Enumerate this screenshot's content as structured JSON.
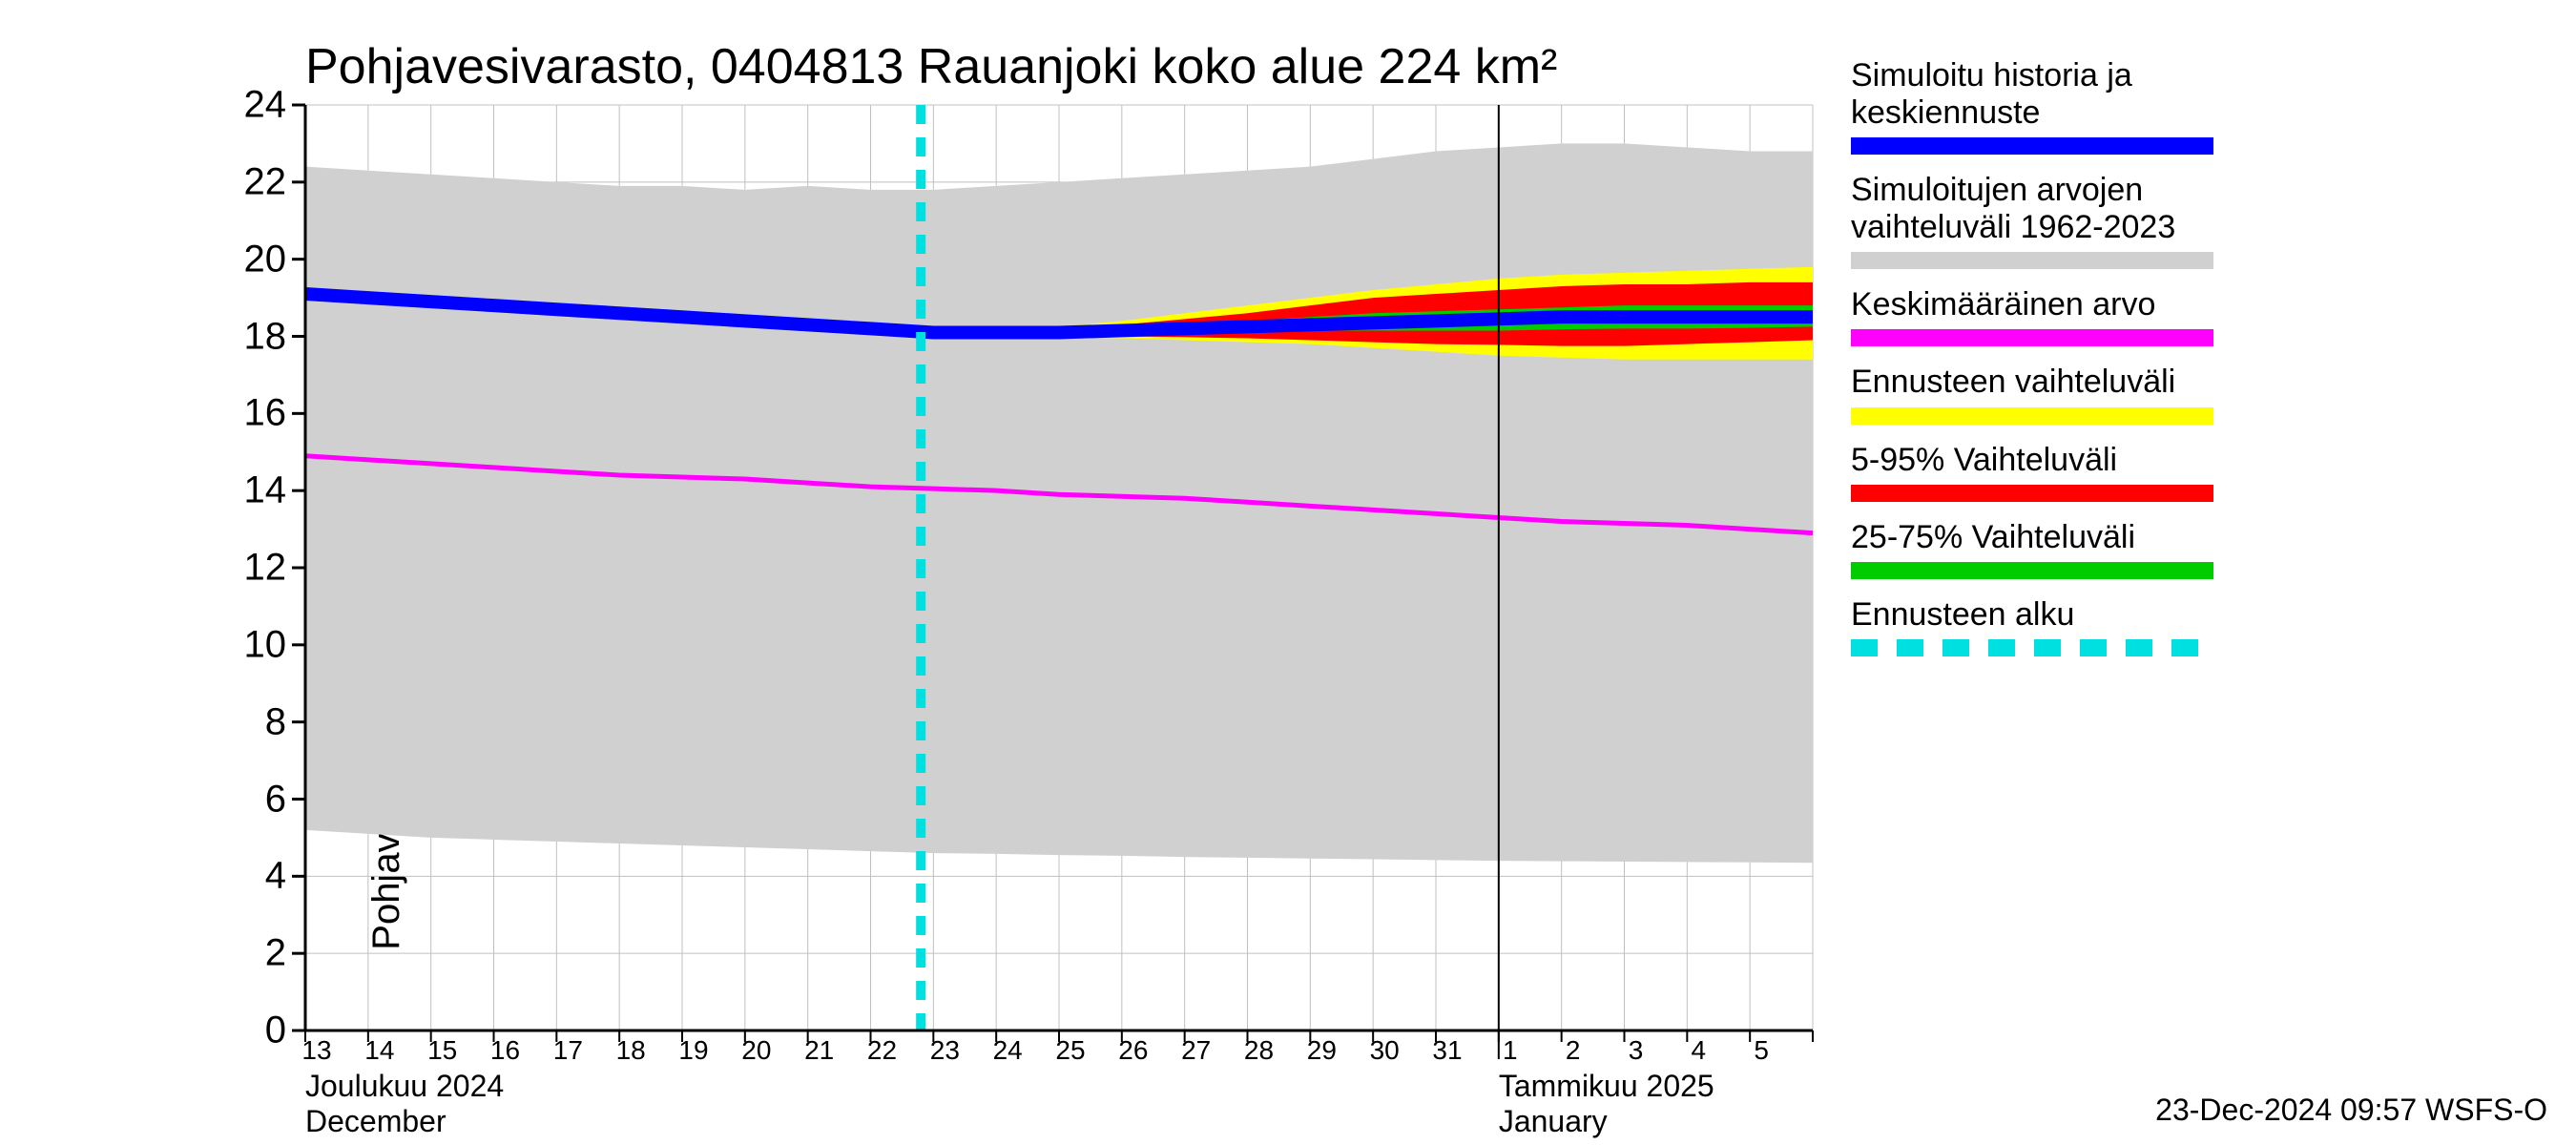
{
  "title": "Pohjavesivarasto, 0404813 Rauanjoki koko alue 224 km²",
  "ylabel": "Pohjavesivarasto / Groundwater storage    mm",
  "footer": "23-Dec-2024 09:57 WSFS-O",
  "chart": {
    "type": "area+line",
    "background_color": "#ffffff",
    "grid_color": "#c0c0c0",
    "axis_color": "#000000",
    "ylim": [
      0,
      24
    ],
    "yticks": [
      0,
      2,
      4,
      6,
      8,
      10,
      12,
      14,
      16,
      18,
      20,
      22,
      24
    ],
    "ytick_fontsize": 40,
    "title_fontsize": 52,
    "label_fontsize": 40,
    "days": 24,
    "day_labels": [
      "13",
      "14",
      "15",
      "16",
      "17",
      "18",
      "19",
      "20",
      "21",
      "22",
      "23",
      "24",
      "25",
      "26",
      "27",
      "28",
      "29",
      "30",
      "31",
      "1",
      "2",
      "3",
      "4",
      "5",
      ""
    ],
    "month_labels": {
      "december": {
        "line1": "Joulukuu  2024",
        "line2": "December",
        "x_day_index": 0
      },
      "january": {
        "line1": "Tammikuu  2025",
        "line2": "January",
        "x_day_index": 19
      }
    },
    "jan_start_day_index": 19,
    "forecast_start_day_index": 9.8,
    "colors": {
      "history_range": "#d0d0d0",
      "mean_line": "#ff00ff",
      "simulated": "#0000ff",
      "forecast_range_outer": "#ffff00",
      "forecast_range_5_95": "#ff0000",
      "forecast_range_25_75": "#00cc00",
      "forecast_start": "#00e0e0"
    },
    "thickness": {
      "simulated": 14,
      "mean_line": 5,
      "forecast_dash": 10
    },
    "series": {
      "history_upper": [
        22.4,
        22.3,
        22.2,
        22.1,
        22.0,
        21.9,
        21.9,
        21.8,
        21.9,
        21.8,
        21.8,
        21.9,
        22.0,
        22.1,
        22.2,
        22.3,
        22.4,
        22.6,
        22.8,
        22.9,
        23.0,
        23.0,
        22.9,
        22.8,
        22.8
      ],
      "history_lower": [
        5.2,
        5.1,
        5.0,
        4.95,
        4.9,
        4.85,
        4.8,
        4.75,
        4.7,
        4.65,
        4.6,
        4.58,
        4.55,
        4.53,
        4.5,
        4.48,
        4.46,
        4.44,
        4.42,
        4.4,
        4.39,
        4.38,
        4.37,
        4.36,
        4.35
      ],
      "mean": [
        14.9,
        14.8,
        14.7,
        14.6,
        14.5,
        14.4,
        14.35,
        14.3,
        14.2,
        14.1,
        14.05,
        14.0,
        13.9,
        13.85,
        13.8,
        13.7,
        13.6,
        13.5,
        13.4,
        13.3,
        13.2,
        13.15,
        13.1,
        13.0,
        12.9
      ],
      "simulated": [
        19.1,
        19.0,
        18.9,
        18.8,
        18.7,
        18.6,
        18.5,
        18.4,
        18.3,
        18.2,
        18.1,
        18.1,
        18.1,
        18.15,
        18.2,
        18.25,
        18.3,
        18.35,
        18.4,
        18.45,
        18.5,
        18.5,
        18.5,
        18.5,
        18.5
      ],
      "outer_upper": [
        null,
        null,
        null,
        null,
        null,
        null,
        null,
        null,
        null,
        null,
        18.1,
        18.15,
        18.25,
        18.4,
        18.6,
        18.8,
        19.0,
        19.2,
        19.35,
        19.5,
        19.6,
        19.65,
        19.7,
        19.75,
        19.8
      ],
      "outer_lower": [
        null,
        null,
        null,
        null,
        null,
        null,
        null,
        null,
        null,
        null,
        18.1,
        18.05,
        18.0,
        17.95,
        17.9,
        17.85,
        17.8,
        17.7,
        17.6,
        17.5,
        17.45,
        17.4,
        17.4,
        17.4,
        17.4
      ],
      "p5_95_upper": [
        null,
        null,
        null,
        null,
        null,
        null,
        null,
        null,
        null,
        null,
        18.1,
        18.15,
        18.2,
        18.3,
        18.45,
        18.6,
        18.8,
        19.0,
        19.1,
        19.2,
        19.3,
        19.35,
        19.35,
        19.4,
        19.4
      ],
      "p5_95_lower": [
        null,
        null,
        null,
        null,
        null,
        null,
        null,
        null,
        null,
        null,
        18.1,
        18.08,
        18.05,
        18.0,
        17.98,
        17.95,
        17.9,
        17.85,
        17.8,
        17.78,
        17.75,
        17.75,
        17.8,
        17.85,
        17.9
      ],
      "p25_75_upper": [
        null,
        null,
        null,
        null,
        null,
        null,
        null,
        null,
        null,
        null,
        18.1,
        18.12,
        18.15,
        18.2,
        18.3,
        18.4,
        18.5,
        18.6,
        18.65,
        18.7,
        18.75,
        18.8,
        18.8,
        18.8,
        18.8
      ],
      "p25_75_lower": [
        null,
        null,
        null,
        null,
        null,
        null,
        null,
        null,
        null,
        null,
        18.1,
        18.1,
        18.1,
        18.1,
        18.12,
        18.15,
        18.15,
        18.15,
        18.15,
        18.15,
        18.18,
        18.2,
        18.2,
        18.22,
        18.25
      ]
    }
  },
  "legend": [
    {
      "text1": "Simuloitu historia ja",
      "text2": "keskiennuste",
      "swatch": "#0000ff",
      "style": "solid"
    },
    {
      "text1": "Simuloitujen arvojen",
      "text2": "vaihteluväli 1962-2023",
      "swatch": "#d0d0d0",
      "style": "solid"
    },
    {
      "text1": "Keskimääräinen arvo",
      "text2": "",
      "swatch": "#ff00ff",
      "style": "solid"
    },
    {
      "text1": "Ennusteen vaihteluväli",
      "text2": "",
      "swatch": "#ffff00",
      "style": "solid"
    },
    {
      "text1": "5-95% Vaihteluväli",
      "text2": "",
      "swatch": "#ff0000",
      "style": "solid"
    },
    {
      "text1": "25-75% Vaihteluväli",
      "text2": "",
      "swatch": "#00cc00",
      "style": "solid"
    },
    {
      "text1": "Ennusteen alku",
      "text2": "",
      "swatch": "#00e0e0",
      "style": "dashed"
    }
  ]
}
